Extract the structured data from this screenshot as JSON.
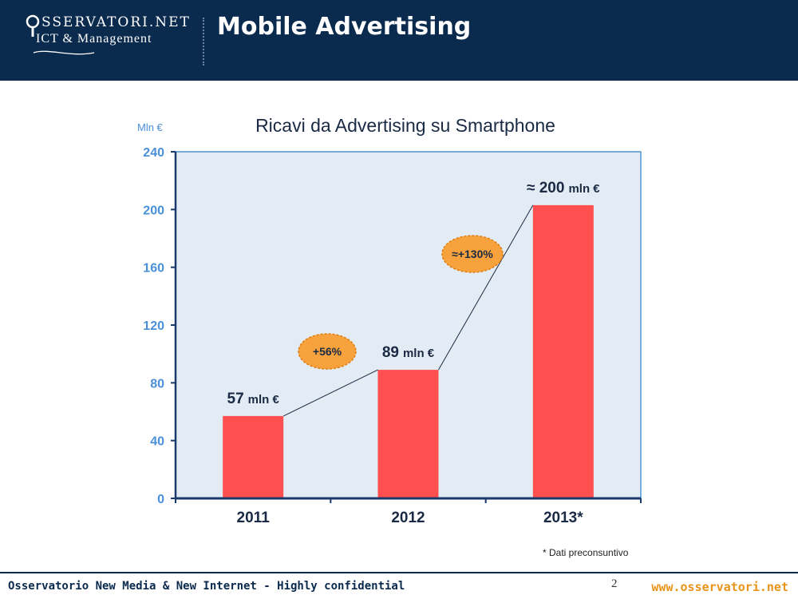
{
  "header": {
    "logo_text": "SSERVATORI.NET",
    "logo_sub": "ICT & Management",
    "title": "Mobile Advertising"
  },
  "chart_data": {
    "type": "bar",
    "title": "Ricavi da Advertising su Smartphone",
    "ylabel": "Mln €",
    "xlabel": "",
    "categories": [
      "2011",
      "2012",
      "2013*"
    ],
    "values": [
      57,
      89,
      203
    ],
    "ylim": [
      0,
      240
    ],
    "yticks": [
      0,
      40,
      80,
      120,
      160,
      200,
      240
    ],
    "data_labels": [
      {
        "prefix": "",
        "num": "57",
        "unit": "mln €"
      },
      {
        "prefix": "",
        "num": "89",
        "unit": "mln €"
      },
      {
        "prefix": "≈ ",
        "num": "200",
        "unit": "mln €"
      }
    ],
    "growth_badges": [
      "+56%",
      "≈+130%"
    ],
    "footnote": "* Dati preconsuntivo",
    "colors": {
      "bar": "#ff4f4f",
      "plot_bg": "#e3ecf4",
      "plot_border": "#4f93d1",
      "axis": "#1a3a6b",
      "tick_label": "#4a90d9",
      "badge": "#f7a23c",
      "badge_border": "#e07d10",
      "connector": "#1a2a44",
      "text_dark": "#1a2a44"
    }
  },
  "footer": {
    "left": "Osservatorio New Media & New Internet - Highly confidential",
    "page": "2",
    "right": "www.osservatori.net"
  }
}
